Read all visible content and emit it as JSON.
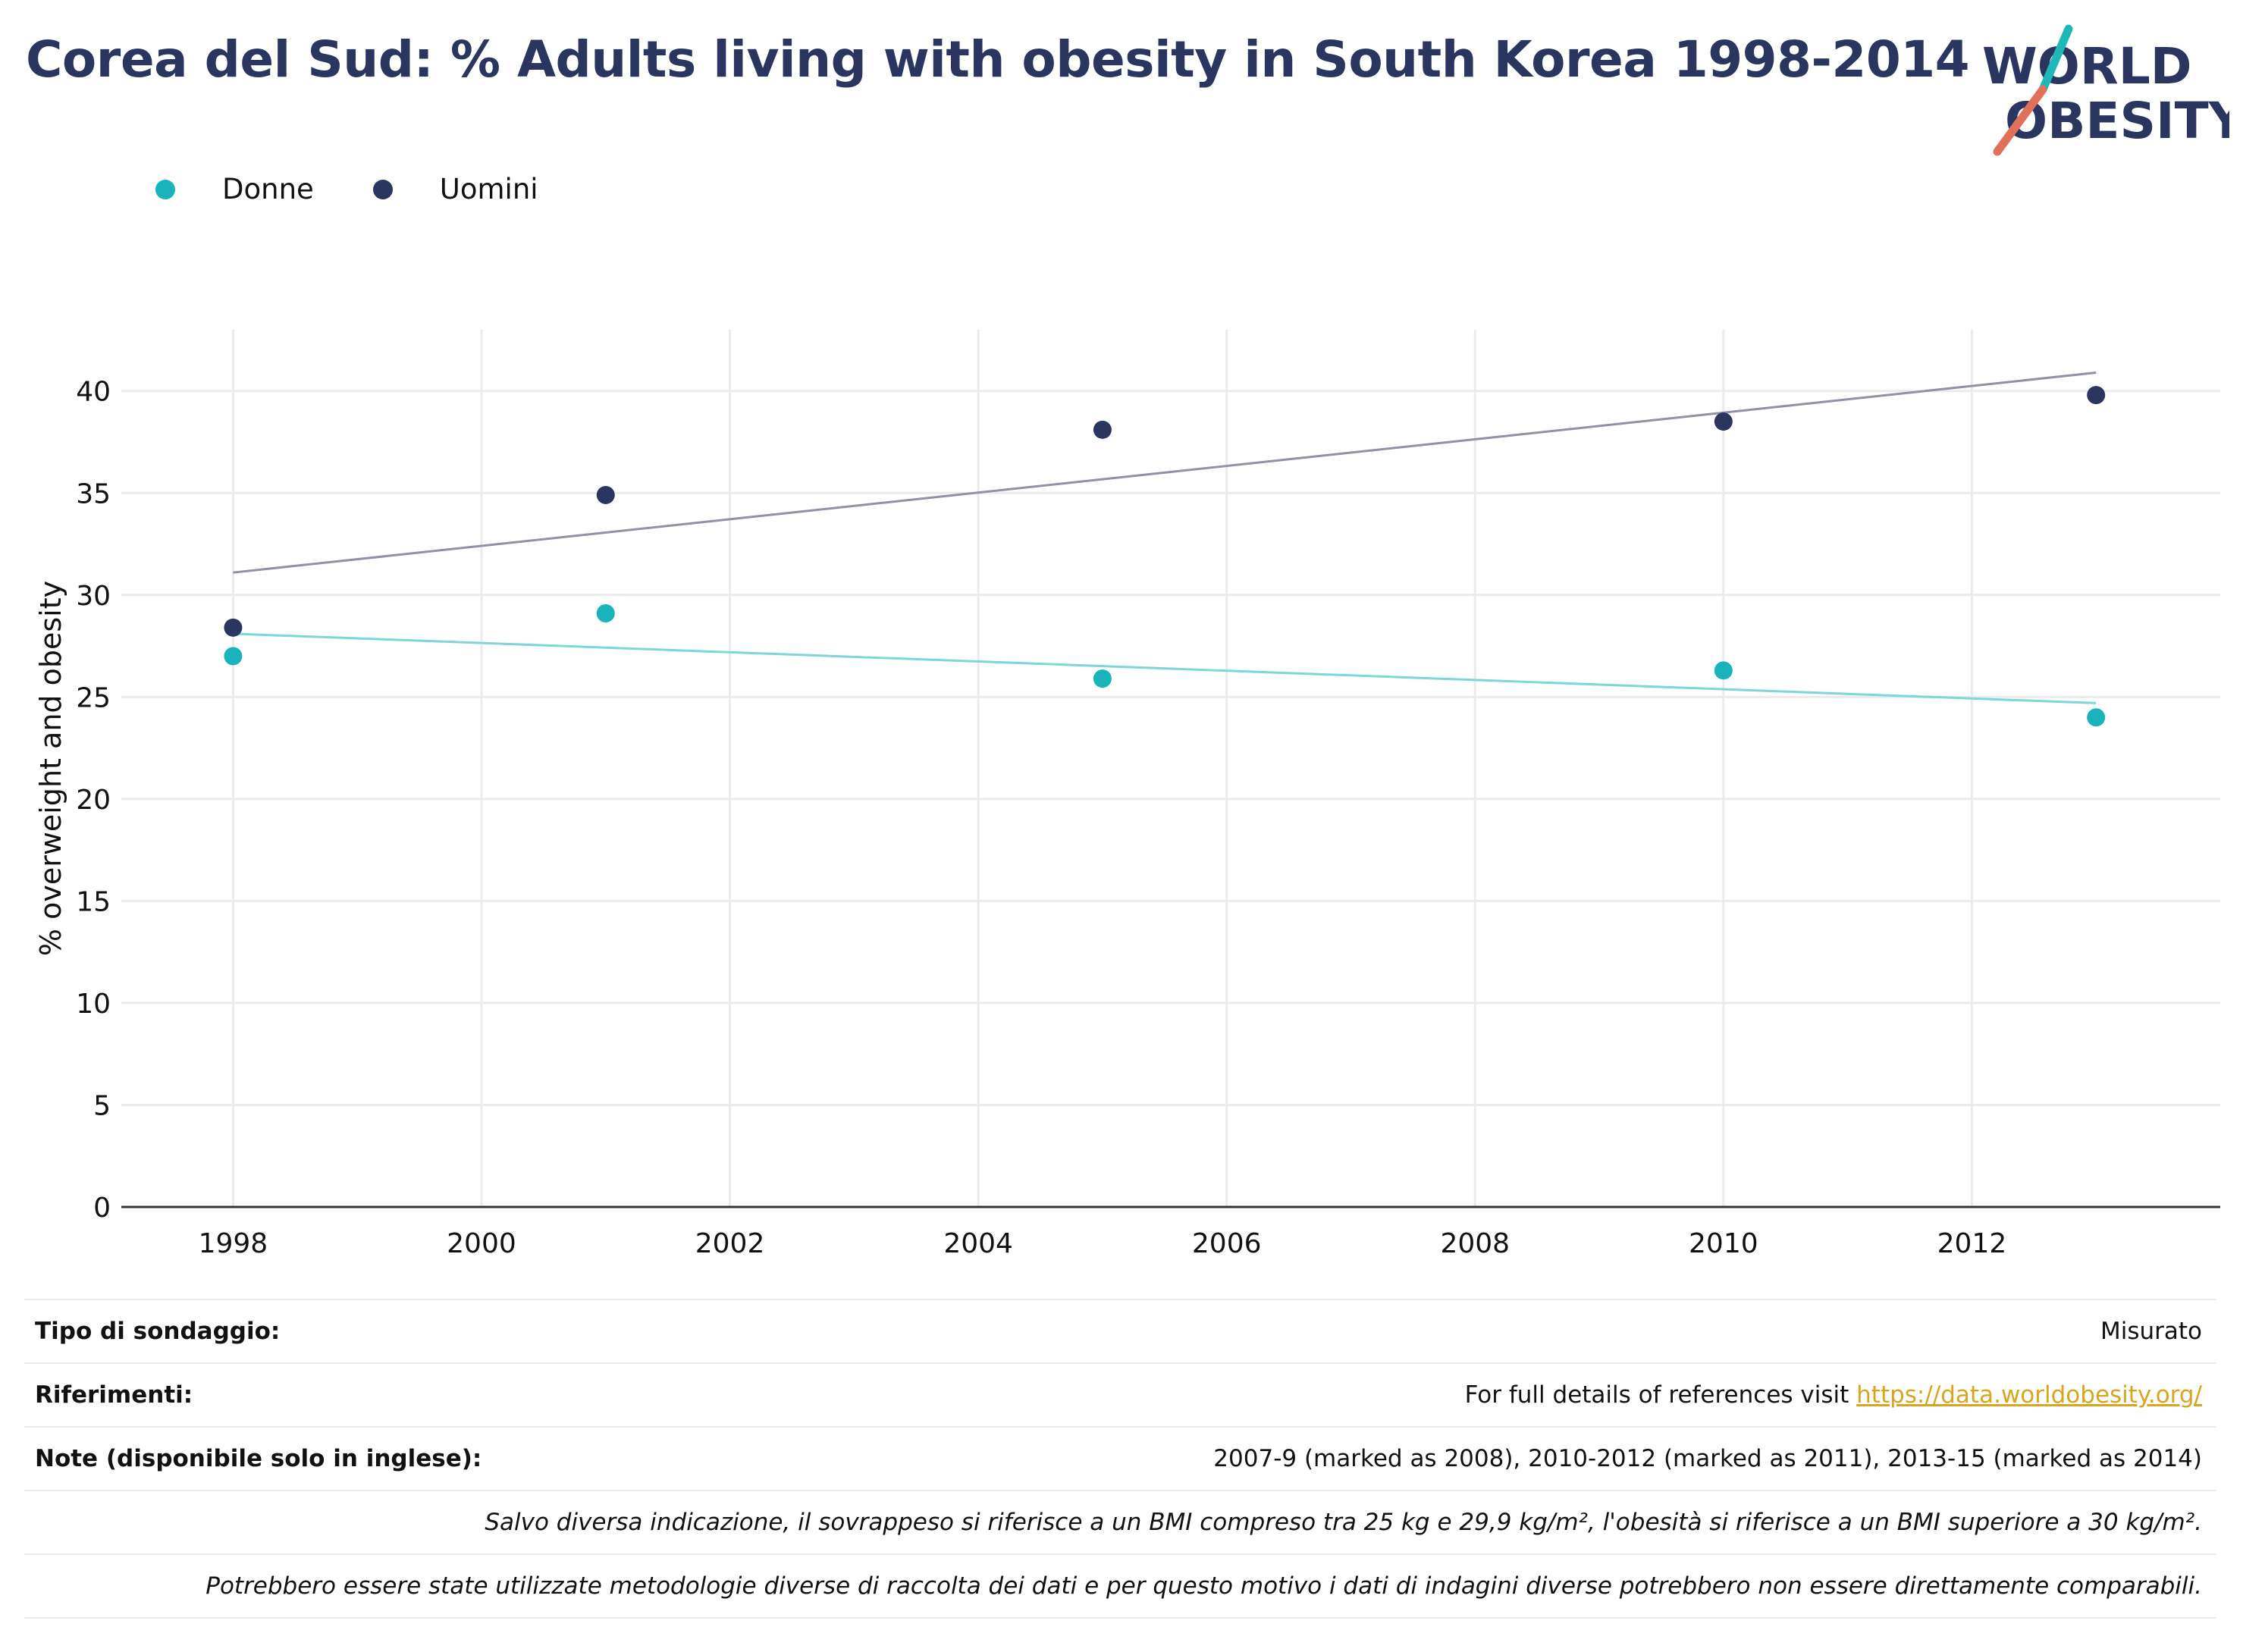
{
  "title": "Corea del Sud: % Adults living with obesity in South Korea 1998-2014",
  "logo": {
    "line1": "WORLD",
    "line2": "OBESITY",
    "colors": {
      "text": "#2a3560",
      "teal": "#1fb8b8",
      "coral": "#e0705a"
    }
  },
  "legend": [
    {
      "label": "Donne",
      "color": "#1ab3bb"
    },
    {
      "label": "Uomini",
      "color": "#2a3560"
    }
  ],
  "chart_data": {
    "type": "scatter",
    "ylabel": "% overweight and obesity",
    "xlabel": "",
    "xlim": [
      1997.1,
      2014.0
    ],
    "ylim": [
      0,
      43
    ],
    "x_ticks": [
      1998,
      2000,
      2002,
      2004,
      2006,
      2008,
      2010,
      2012
    ],
    "y_ticks": [
      0,
      5,
      10,
      15,
      20,
      25,
      30,
      35,
      40
    ],
    "grid": true,
    "legend_position": "top-left",
    "series": [
      {
        "name": "Donne",
        "color": "#1ab3bb",
        "trend_color": "#7fd6d6",
        "x": [
          1998,
          2001,
          2005,
          2010,
          2013
        ],
        "y": [
          27.0,
          29.1,
          25.9,
          26.3,
          24.0
        ],
        "trend": [
          [
            1998,
            28.1
          ],
          [
            2013,
            24.7
          ]
        ]
      },
      {
        "name": "Uomini",
        "color": "#2a3560",
        "trend_color": "#8f91a6",
        "x": [
          1998,
          2001,
          2005,
          2010,
          2013
        ],
        "y": [
          28.4,
          34.9,
          38.1,
          38.5,
          39.8
        ],
        "trend": [
          [
            1998,
            31.1
          ],
          [
            2013,
            40.9
          ]
        ]
      }
    ]
  },
  "footer": {
    "survey_label": "Tipo di sondaggio:",
    "survey_value": "Misurato",
    "refs_label": "Riferimenti:",
    "refs_prefix": "For full details of references visit ",
    "refs_link": "https://data.worldobesity.org/",
    "notes_label": "Note (disponibile solo in inglese):",
    "notes_value": "2007-9 (marked as 2008), 2010-2012 (marked as 2011), 2013-15 (marked as 2014)",
    "bmi_note": "Salvo diversa indicazione, il sovrappeso si riferisce a un BMI compreso tra 25 kg e 29,9 kg/m², l'obesità si riferisce a un BMI superiore a 30 kg/m².",
    "method_note": "Potrebbero essere state utilizzate metodologie diverse di raccolta dei dati e per questo motivo i dati di indagini diverse potrebbero non essere direttamente comparabili."
  }
}
